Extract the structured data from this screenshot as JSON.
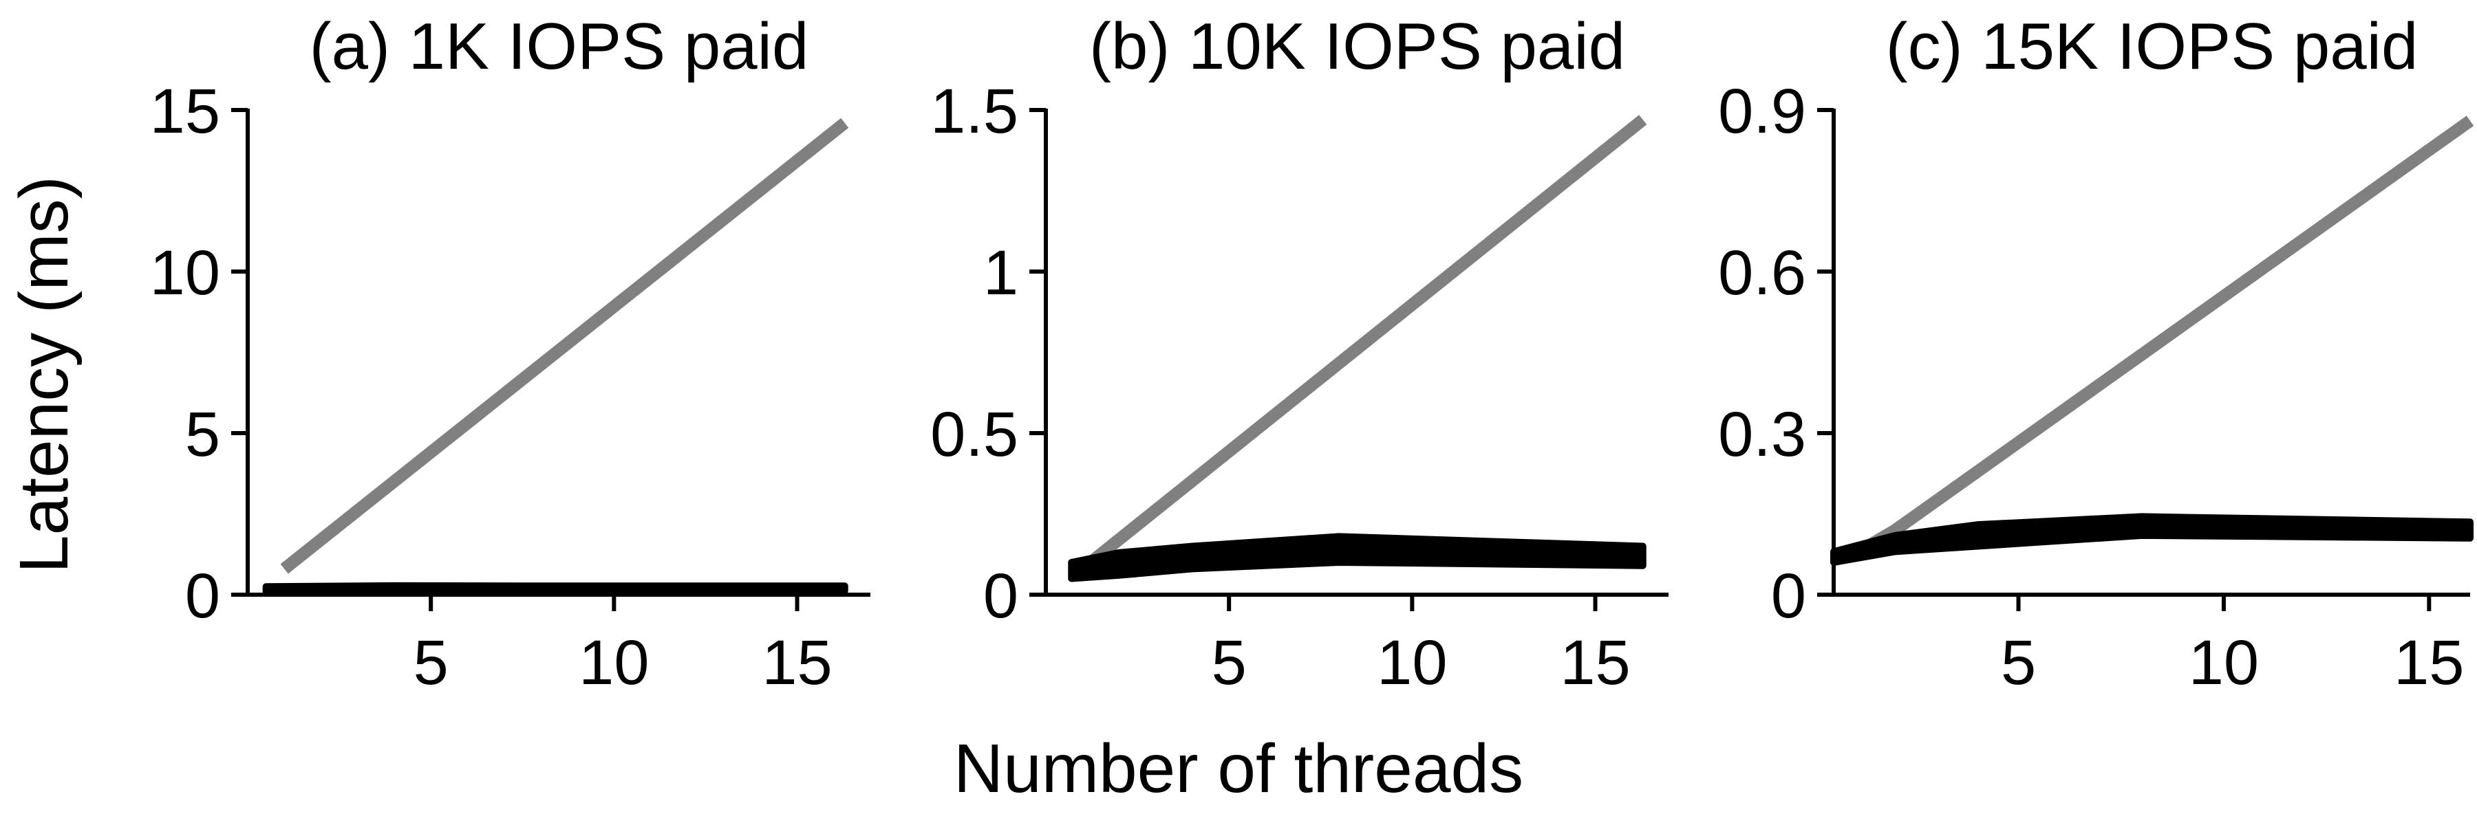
{
  "figure": {
    "ylabel": "Latency (ms)",
    "xlabel": "Number of threads"
  },
  "chart_data": [
    {
      "type": "line",
      "title": "(a) 1K IOPS paid",
      "xlabel": "Number of threads",
      "ylabel": "Latency (ms)",
      "xlim": [
        0,
        17
      ],
      "ylim": [
        0,
        15
      ],
      "xticks": [
        5,
        10,
        15
      ],
      "yticks": [
        0,
        5,
        10,
        15
      ],
      "ytick_labels": [
        "0",
        "5",
        "10",
        "15"
      ],
      "grid": false,
      "legend": "none",
      "series": [
        {
          "x": [
            1,
            16.3
          ],
          "y": [
            0.8,
            14.6
          ],
          "color": "#808080"
        },
        {
          "x": [
            0.5,
            4,
            8,
            16.3
          ],
          "y": [
            0.25,
            0.28,
            0.27,
            0.27
          ],
          "y_low": [
            0.1,
            0.12,
            0.12,
            0.12
          ],
          "color": "#000000"
        }
      ]
    },
    {
      "type": "line",
      "title": "(b) 10K IOPS paid",
      "xlabel": "Number of threads",
      "ylabel": "Latency (ms)",
      "xlim": [
        0,
        17
      ],
      "ylim": [
        0,
        1.5
      ],
      "xticks": [
        5,
        10,
        15
      ],
      "yticks": [
        0,
        0.5,
        1,
        1.5
      ],
      "ytick_labels": [
        "0",
        "0.5",
        "1",
        "1.5"
      ],
      "grid": false,
      "legend": "none",
      "series": [
        {
          "x": [
            1,
            16.3
          ],
          "y": [
            0.08,
            1.47
          ],
          "color": "#808080"
        },
        {
          "x": [
            0.7,
            2,
            4,
            8,
            16.3
          ],
          "y": [
            0.1,
            0.13,
            0.15,
            0.18,
            0.15
          ],
          "y_low": [
            0.05,
            0.06,
            0.08,
            0.1,
            0.09
          ],
          "color": "#000000"
        }
      ]
    },
    {
      "type": "line",
      "title": "(c) 15K IOPS paid",
      "xlabel": "Number of threads",
      "ylabel": "Latency (ms)",
      "xlim": [
        0.5,
        16
      ],
      "ylim": [
        0,
        0.9
      ],
      "xticks": [
        5,
        10,
        15
      ],
      "yticks": [
        0,
        0.3,
        0.6,
        0.9
      ],
      "ytick_labels": [
        "0",
        "0.3",
        "0.6",
        "0.9"
      ],
      "grid": false,
      "legend": "none",
      "series": [
        {
          "x": [
            1,
            2,
            16
          ],
          "y": [
            0.075,
            0.12,
            0.88
          ],
          "color": "#808080"
        },
        {
          "x": [
            0.5,
            2,
            4,
            8,
            16
          ],
          "y": [
            0.08,
            0.11,
            0.13,
            0.145,
            0.135
          ],
          "y_low": [
            0.06,
            0.08,
            0.09,
            0.11,
            0.105
          ],
          "color": "#000000"
        }
      ]
    }
  ]
}
